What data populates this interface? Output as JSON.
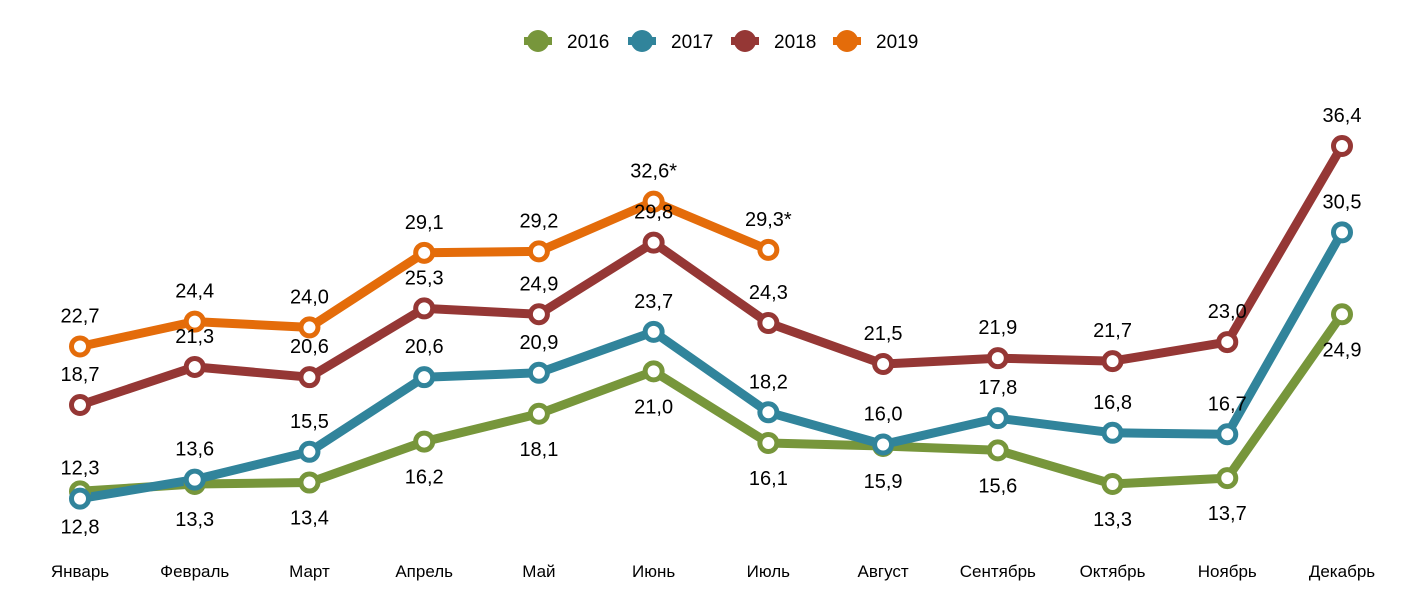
{
  "chart_data": {
    "type": "line",
    "title": "",
    "xlabel": "",
    "ylabel": "",
    "grid": false,
    "legend_position": "top-center",
    "ylim": [
      12,
      37
    ],
    "categories": [
      "Январь",
      "Февраль",
      "Март",
      "Апрель",
      "Май",
      "Июнь",
      "Июль",
      "Август",
      "Сентябрь",
      "Октябрь",
      "Ноябрь",
      "Декабрь"
    ],
    "series": [
      {
        "name": "2016",
        "color": "#77963B",
        "label_side": "below",
        "values": [
          12.8,
          13.3,
          13.4,
          16.2,
          18.1,
          21.0,
          16.1,
          15.9,
          15.6,
          13.3,
          13.7,
          24.9
        ],
        "labels": [
          "12,8",
          "13,3",
          "13,4",
          "16,2",
          "18,1",
          "21,0",
          "16,1",
          "15,9",
          "15,6",
          "13,3",
          "13,7",
          "24,9"
        ]
      },
      {
        "name": "2017",
        "color": "#31849B",
        "label_side": "above",
        "values": [
          12.3,
          13.6,
          15.5,
          20.6,
          20.9,
          23.7,
          18.2,
          16.0,
          17.8,
          16.8,
          16.7,
          30.5
        ],
        "labels": [
          "12,3",
          "13,6",
          "15,5",
          "20,6",
          "20,9",
          "23,7",
          "18,2",
          "16,0",
          "17,8",
          "16,8",
          "16,7",
          "30,5"
        ]
      },
      {
        "name": "2018",
        "color": "#953735",
        "label_side": "above",
        "values": [
          18.7,
          21.3,
          20.6,
          25.3,
          24.9,
          29.8,
          24.3,
          21.5,
          21.9,
          21.7,
          23.0,
          36.4
        ],
        "labels": [
          "18,7",
          "21,3",
          "20,6",
          "25,3",
          "24,9",
          "29,8",
          "24,3",
          "21,5",
          "21,9",
          "21,7",
          "23,0",
          "36,4"
        ]
      },
      {
        "name": "2019",
        "color": "#E46C0A",
        "label_side": "above",
        "values": [
          22.7,
          24.4,
          24.0,
          29.1,
          29.2,
          32.6,
          29.3,
          null,
          null,
          null,
          null,
          null
        ],
        "labels": [
          "22,7",
          "24,4",
          "24,0",
          "29,1",
          "29,2",
          "32,6*",
          "29,3*",
          null,
          null,
          null,
          null,
          null
        ]
      }
    ]
  }
}
